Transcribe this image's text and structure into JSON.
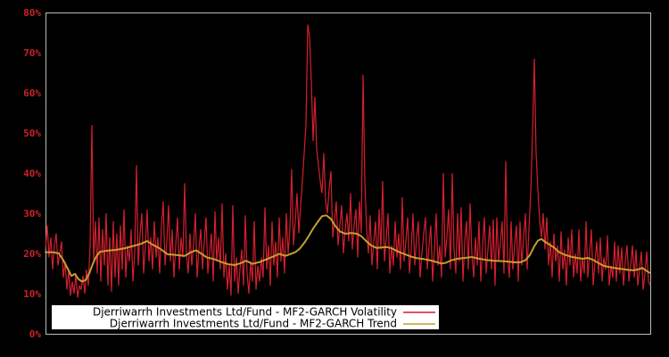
{
  "chart": {
    "background": "#000000",
    "plot_border_color": "#bcbcbc",
    "axis_label_color": "#cc2128",
    "legend_box_color": "#ffffff"
  },
  "chart_data": {
    "type": "line",
    "title": "",
    "xlabel": "",
    "ylabel": "",
    "ylim": [
      0,
      80
    ],
    "y_ticks": [
      0,
      10,
      20,
      30,
      40,
      50,
      60,
      70,
      80
    ],
    "y_tick_suffix": "%",
    "x_axis_labels": "none",
    "grid": false,
    "legend_position": "bottom-center",
    "x_count": 340,
    "series": [
      {
        "name": "Djerriwarrh Investments Ltd/Fund - MF2-GARCH Volatility",
        "color": "#d41f2e",
        "kind": "dense",
        "values": [
          21,
          27,
          19,
          24,
          16,
          22,
          25,
          17,
          20,
          23,
          14,
          18,
          11,
          16,
          9.5,
          13,
          10,
          15,
          9,
          12,
          11,
          14.5,
          10,
          16,
          12,
          22,
          52,
          18,
          28,
          15,
          29,
          13,
          26,
          17,
          30,
          12,
          24,
          10.5,
          28,
          14,
          25,
          12,
          27,
          16,
          31,
          14,
          22,
          18,
          26,
          13,
          20,
          42,
          17,
          25,
          30,
          15,
          22,
          31,
          18,
          24,
          16,
          28,
          19,
          24,
          15,
          27,
          33,
          17,
          23,
          32,
          18,
          26,
          14,
          22,
          29,
          16,
          24,
          19,
          37.5,
          20,
          15,
          25,
          17,
          22,
          30,
          14,
          21,
          26,
          16,
          23,
          29,
          15,
          20,
          25,
          13,
          30.5,
          18,
          24,
          16,
          32.5,
          14,
          20,
          11,
          17,
          9.5,
          32,
          13,
          19,
          10,
          16,
          21,
          12,
          29.5,
          15,
          10,
          18,
          13,
          28,
          11,
          17,
          13,
          19,
          14,
          31.5,
          16,
          22,
          12,
          28,
          17,
          23,
          14,
          29,
          18,
          24,
          15,
          30,
          20,
          26,
          41,
          22,
          28,
          35,
          25,
          32,
          38,
          45,
          52,
          77,
          74,
          63,
          48,
          59,
          46,
          42,
          38,
          35,
          45,
          33,
          30,
          36,
          40.5,
          24,
          28,
          33,
          22,
          27,
          32,
          20,
          26,
          30,
          23,
          35,
          21,
          27,
          31,
          19,
          33,
          25,
          64.5,
          38,
          26,
          20,
          29.5,
          17,
          23,
          28,
          16,
          31,
          21,
          38,
          18,
          24,
          30,
          15,
          22,
          17,
          28,
          19,
          25,
          16,
          34,
          18,
          23,
          29,
          15,
          21,
          30,
          17,
          24,
          28,
          14,
          20,
          25,
          29,
          16,
          22,
          27,
          13,
          21,
          30,
          17,
          22,
          14,
          40,
          19,
          24,
          31,
          16,
          40,
          21,
          15,
          30,
          18,
          31.5,
          13,
          23,
          28,
          16,
          32.5,
          20,
          14,
          24,
          17,
          28,
          13,
          22,
          29,
          15,
          21,
          27,
          16,
          28.5,
          12,
          29,
          18,
          23,
          28,
          15,
          43,
          19,
          14,
          28,
          16,
          22,
          27,
          13,
          28,
          17,
          24,
          30,
          16,
          26,
          35,
          50,
          68.5,
          45,
          36,
          28,
          24,
          30,
          21,
          29,
          17,
          23,
          14,
          25,
          18,
          22,
          13,
          25.5,
          16,
          21,
          12,
          24,
          17,
          26,
          14,
          20,
          15,
          26,
          13,
          19,
          15,
          28,
          14,
          20,
          26,
          12,
          18,
          23,
          15,
          24,
          13,
          19,
          16,
          24.5,
          12,
          17,
          14,
          23,
          13,
          22,
          15,
          21.5,
          12,
          18,
          22,
          13,
          17,
          22,
          14,
          21,
          12,
          16,
          20.5,
          11,
          15,
          20.5,
          13,
          12
        ]
      },
      {
        "name": "Djerriwarrh Investments Ltd/Fund - MF2-GARCH Trend",
        "color": "#c69e2d",
        "kind": "control_points",
        "points": [
          [
            0,
            20.3
          ],
          [
            4.5,
            20.3
          ],
          [
            7.5,
            20
          ],
          [
            10,
            18.3
          ],
          [
            12.5,
            16.2
          ],
          [
            14.5,
            14.4
          ],
          [
            16.5,
            14.9
          ],
          [
            18.5,
            13.6
          ],
          [
            20.5,
            13
          ],
          [
            22.5,
            13.4
          ],
          [
            24.5,
            15
          ],
          [
            26.5,
            17.4
          ],
          [
            28.5,
            19.3
          ],
          [
            30.5,
            20.4
          ],
          [
            34.5,
            20.7
          ],
          [
            39.5,
            20.9
          ],
          [
            44.5,
            21.3
          ],
          [
            49.5,
            21.9
          ],
          [
            53.5,
            22.4
          ],
          [
            57,
            23.1
          ],
          [
            60,
            22.2
          ],
          [
            63.5,
            21.4
          ],
          [
            68.5,
            19.8
          ],
          [
            73.5,
            19.6
          ],
          [
            78,
            19.4
          ],
          [
            81.5,
            20.3
          ],
          [
            84.5,
            20.8
          ],
          [
            87.5,
            19.9
          ],
          [
            90.5,
            19
          ],
          [
            94.5,
            18.6
          ],
          [
            98.5,
            17.9
          ],
          [
            102.5,
            17.3
          ],
          [
            106,
            17.1
          ],
          [
            109.5,
            17.6
          ],
          [
            112.5,
            18.2
          ],
          [
            116,
            17.4
          ],
          [
            119.5,
            17.8
          ],
          [
            123.5,
            18.5
          ],
          [
            127.5,
            19.2
          ],
          [
            131,
            19.9
          ],
          [
            134.5,
            19.4
          ],
          [
            137.5,
            19.9
          ],
          [
            140,
            20.3
          ],
          [
            142.5,
            21.2
          ],
          [
            145,
            22.6
          ],
          [
            147.5,
            24.3
          ],
          [
            150,
            26.2
          ],
          [
            152.5,
            27.8
          ],
          [
            155,
            29.3
          ],
          [
            157.5,
            29.5
          ],
          [
            160,
            28.6
          ],
          [
            162.5,
            26.8
          ],
          [
            165,
            25.5
          ],
          [
            168,
            24.9
          ],
          [
            171.5,
            25.1
          ],
          [
            174.5,
            24.9
          ],
          [
            177,
            24.3
          ],
          [
            179.5,
            23.2
          ],
          [
            182.5,
            22
          ],
          [
            185.5,
            21.4
          ],
          [
            188.5,
            21.5
          ],
          [
            191.5,
            21.6
          ],
          [
            194.5,
            21.2
          ],
          [
            198,
            20.4
          ],
          [
            201.5,
            19.8
          ],
          [
            205,
            19.2
          ],
          [
            208.5,
            18.8
          ],
          [
            212,
            18.6
          ],
          [
            215.5,
            18.3
          ],
          [
            219,
            17.9
          ],
          [
            222,
            17.5
          ],
          [
            224.5,
            17.7
          ],
          [
            227.5,
            18.3
          ],
          [
            231,
            18.7
          ],
          [
            235,
            18.9
          ],
          [
            239,
            19.1
          ],
          [
            243,
            18.7
          ],
          [
            247,
            18.4
          ],
          [
            251,
            18.2
          ],
          [
            255,
            18.1
          ],
          [
            259,
            18
          ],
          [
            262.5,
            17.8
          ],
          [
            266,
            17.8
          ],
          [
            269,
            18.3
          ],
          [
            271.5,
            19.6
          ],
          [
            274,
            21.8
          ],
          [
            276,
            23.2
          ],
          [
            278,
            23.6
          ],
          [
            280,
            22.9
          ],
          [
            282.5,
            22.2
          ],
          [
            285,
            21.5
          ],
          [
            288,
            20.3
          ],
          [
            291,
            19.7
          ],
          [
            294.5,
            19.2
          ],
          [
            298,
            18.9
          ],
          [
            301,
            18.7
          ],
          [
            304,
            18.9
          ],
          [
            307,
            18.4
          ],
          [
            310,
            17.6
          ],
          [
            313,
            16.9
          ],
          [
            316.5,
            16.6
          ],
          [
            320,
            16.3
          ],
          [
            323.5,
            16.1
          ],
          [
            326.5,
            15.9
          ],
          [
            329.5,
            15.8
          ],
          [
            332,
            16
          ],
          [
            334.5,
            16.4
          ],
          [
            336.5,
            15.8
          ],
          [
            338.5,
            15.2
          ]
        ]
      }
    ]
  },
  "legend": {
    "volatility_label": "Djerriwarrh Investments Ltd/Fund - MF2-GARCH Volatility",
    "trend_label": "Djerriwarrh Investments Ltd/Fund - MF2-GARCH Trend"
  }
}
